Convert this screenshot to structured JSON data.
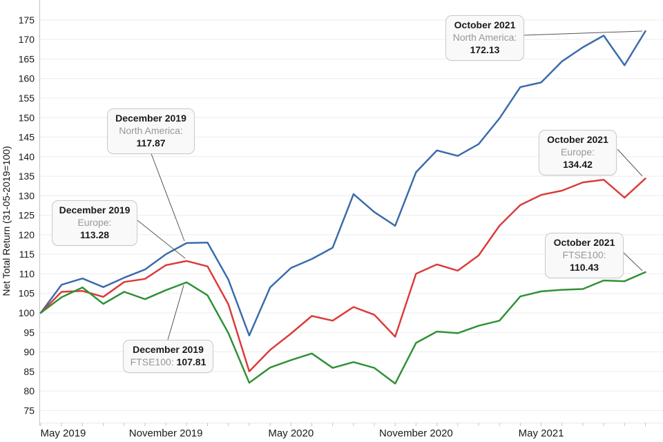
{
  "chart_data": {
    "type": "line",
    "title": "",
    "xlabel": "",
    "ylabel": "Net Total Return (31-05-2019=100)",
    "ylim": [
      75,
      175
    ],
    "y_tick_step": 5,
    "grid": "horizontal",
    "legend": "none (annotated callouts)",
    "x_frequency": "monthly",
    "x_start": "May 2019",
    "x_end": "October 2021",
    "x_points": 30,
    "x_ticks": [
      {
        "index": 0,
        "label": "May 2019"
      },
      {
        "index": 6,
        "label": "November 2019"
      },
      {
        "index": 12,
        "label": "May 2020"
      },
      {
        "index": 18,
        "label": "November 2020"
      },
      {
        "index": 24,
        "label": "May 2021"
      }
    ],
    "series": [
      {
        "name": "North America",
        "color": "#3a6cab",
        "values": [
          100,
          107.2,
          108.8,
          106.6,
          109.0,
          111.1,
          115.0,
          117.87,
          118.0,
          108.5,
          94.2,
          106.5,
          111.5,
          113.8,
          116.7,
          130.4,
          125.8,
          122.3,
          136.0,
          141.6,
          140.2,
          143.2,
          149.8,
          157.8,
          159.0,
          164.4,
          168.0,
          171.0,
          163.4,
          172.13
        ]
      },
      {
        "name": "Europe",
        "color": "#dc3a3a",
        "values": [
          100,
          105.4,
          105.6,
          104.1,
          107.9,
          108.7,
          112.2,
          113.28,
          111.9,
          102.2,
          85.0,
          90.5,
          94.7,
          99.2,
          98.0,
          101.5,
          99.5,
          93.9,
          110.0,
          112.4,
          110.8,
          114.7,
          122.3,
          127.6,
          130.2,
          131.3,
          133.4,
          134.1,
          129.5,
          134.42
        ]
      },
      {
        "name": "FTSE100",
        "color": "#2f9135",
        "values": [
          100,
          104.0,
          106.5,
          102.3,
          105.4,
          103.5,
          105.8,
          107.81,
          104.5,
          94.8,
          82.1,
          86.0,
          87.9,
          89.6,
          85.9,
          87.4,
          85.9,
          81.9,
          92.3,
          95.2,
          94.8,
          96.7,
          98.0,
          104.2,
          105.5,
          105.9,
          106.1,
          108.3,
          108.1,
          110.43
        ]
      }
    ],
    "annotations": [
      {
        "id": "dec-na",
        "title": "December 2019",
        "label": "North America:",
        "value": "117.87",
        "series": "North America",
        "point_index": 7,
        "layout": "stacked"
      },
      {
        "id": "dec-eu",
        "title": "December 2019",
        "label": "Europe:",
        "value": "113.28",
        "series": "Europe",
        "point_index": 7,
        "layout": "stacked"
      },
      {
        "id": "dec-ft",
        "title": "December 2019",
        "label": "FTSE100:",
        "value": "107.81",
        "series": "FTSE100",
        "point_index": 7,
        "layout": "inline"
      },
      {
        "id": "oct-na",
        "title": "October 2021",
        "label": "North America:",
        "value": "172.13",
        "series": "North America",
        "point_index": 29,
        "layout": "stacked"
      },
      {
        "id": "oct-eu",
        "title": "October 2021",
        "label": "Europe:",
        "value": "134.42",
        "series": "Europe",
        "point_index": 29,
        "layout": "stacked"
      },
      {
        "id": "oct-ft",
        "title": "October 2021",
        "label": "FTSE100:",
        "value": "110.43",
        "series": "FTSE100",
        "point_index": 29,
        "layout": "stacked"
      }
    ]
  }
}
